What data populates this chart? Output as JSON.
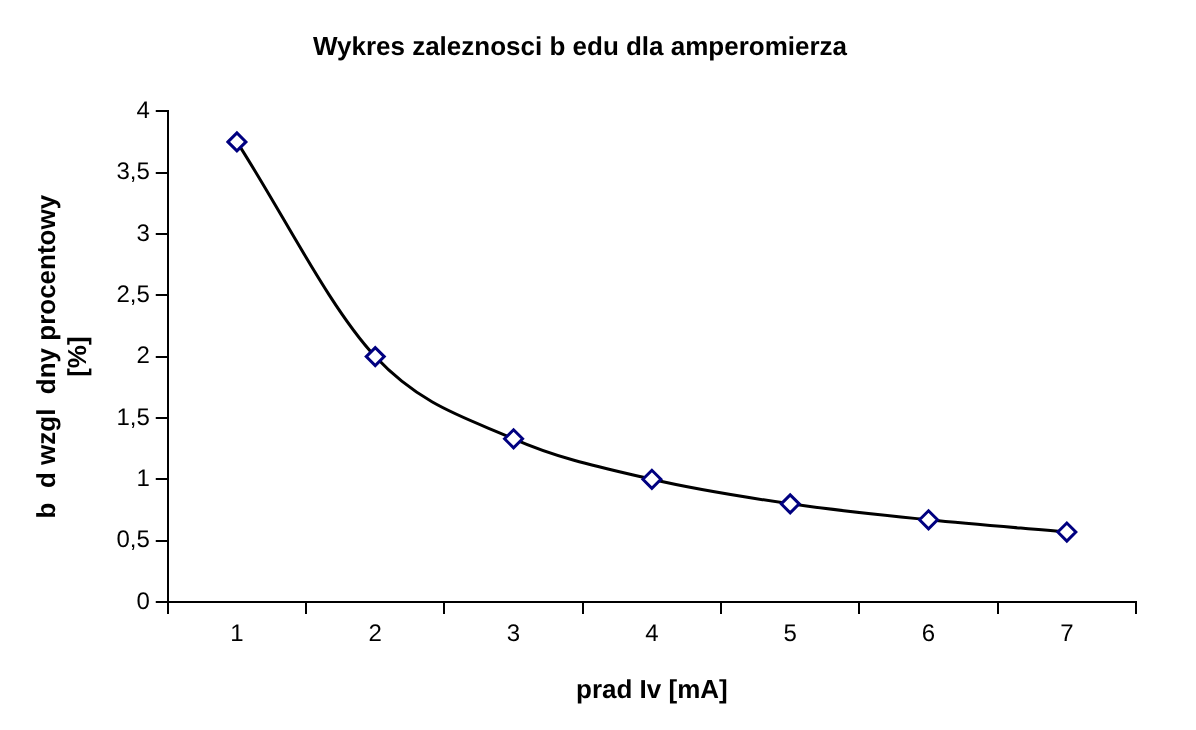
{
  "chart_data": {
    "type": "line",
    "title": "Wykres zaleznosci b edu dla amperomierza",
    "xlabel": "prad Iv [mA]",
    "ylabel": "b  d wzgl  dny procentowy\n[%]",
    "categories": [
      "1",
      "2",
      "3",
      "4",
      "5",
      "6",
      "7"
    ],
    "series": [
      {
        "color": "#000000",
        "colors": [
          "#000080",
          "#000080",
          "#000080",
          "#000080",
          "#000080",
          "#000080",
          "#000080"
        ],
        "values": [
          3.75,
          2,
          1.33,
          1,
          0.8,
          0.67,
          0.57
        ]
      }
    ],
    "ylim": [
      0,
      4
    ],
    "yticks": [
      0,
      {
        "value": 0.5,
        "label": "0,5"
      },
      1,
      {
        "value": 1.5,
        "label": "1,5"
      },
      2,
      {
        "value": 2.5,
        "label": "2,5"
      },
      3,
      {
        "value": 3.5,
        "label": "3,5"
      },
      4
    ],
    "grid": false,
    "legend": false,
    "marker": "diamond",
    "line_style": "solid"
  }
}
